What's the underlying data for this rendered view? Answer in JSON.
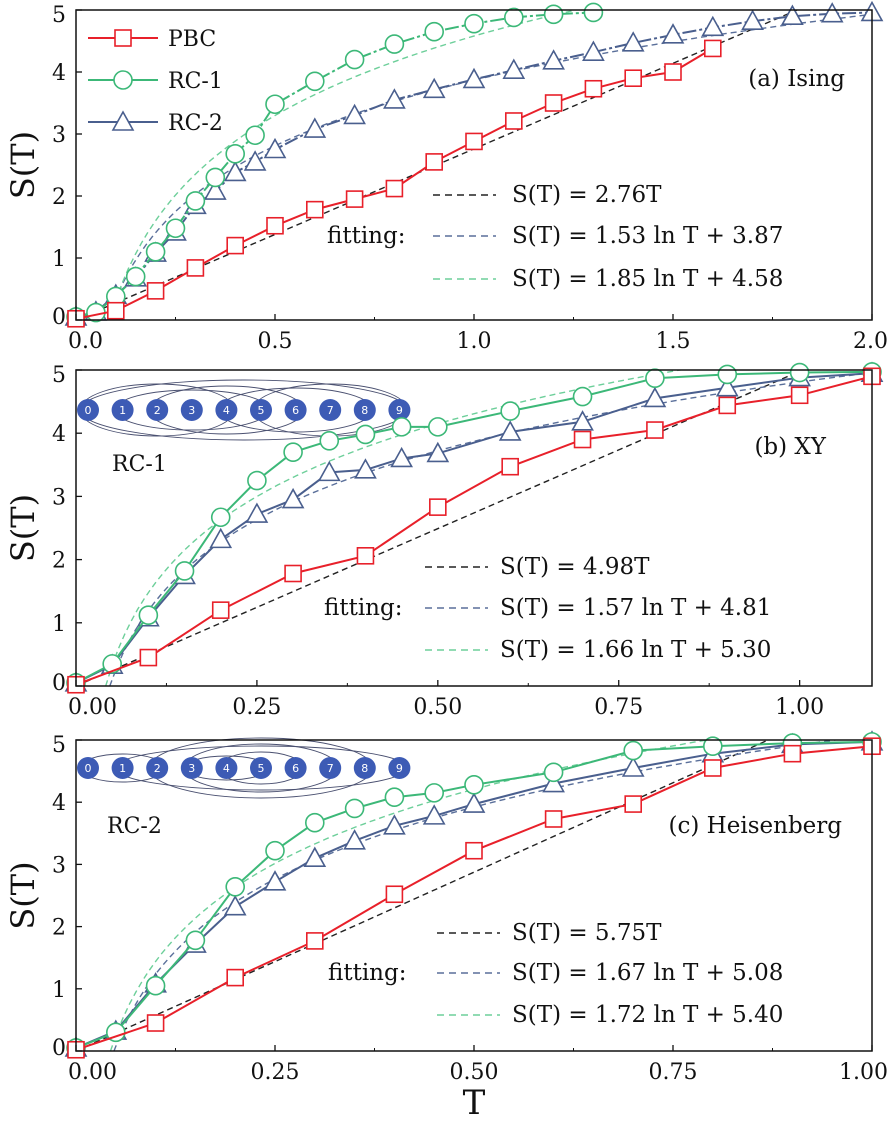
{
  "colors": {
    "pbc": "#e8202a",
    "rc1": "#3cb878",
    "rc2": "#4a5f8e",
    "rc2_fill": "#ffffff",
    "fit_linear": "#222222",
    "fit_rc2": "#5a6f9a",
    "fit_rc1": "#6dcf9a",
    "node": "#3d5bb5",
    "axis": "#111111"
  },
  "legend": {
    "pbc": "PBC",
    "rc1": "RC-1",
    "rc2": "RC-2"
  },
  "fitting_label": "fitting:",
  "x_axis_label": "T",
  "chain": {
    "nodes": [
      "0",
      "1",
      "2",
      "3",
      "4",
      "5",
      "6",
      "7",
      "8",
      "9"
    ],
    "rc1_label": "RC-1",
    "rc2_label": "RC-2"
  },
  "chart_data": [
    {
      "type": "line",
      "panel_label": "(a) Ising",
      "ylabel": "S(T)",
      "xlim": [
        0,
        2.0
      ],
      "ylim": [
        0,
        5
      ],
      "xticks": [
        "0.0",
        "0.5",
        "1.0",
        "1.5",
        "2.0"
      ],
      "yticks": [
        "0",
        "1",
        "2",
        "3",
        "4",
        "5"
      ],
      "series": [
        {
          "name": "PBC",
          "x": [
            0,
            0.1,
            0.2,
            0.3,
            0.4,
            0.5,
            0.6,
            0.7,
            0.8,
            0.9,
            1.0,
            1.1,
            1.2,
            1.3,
            1.4,
            1.5,
            1.6
          ],
          "y": [
            0.02,
            0.15,
            0.47,
            0.84,
            1.2,
            1.52,
            1.78,
            1.95,
            2.12,
            2.55,
            2.88,
            3.21,
            3.5,
            3.73,
            3.9,
            4.0,
            4.38
          ]
        },
        {
          "name": "RC-1",
          "x": [
            0,
            0.05,
            0.1,
            0.15,
            0.2,
            0.25,
            0.3,
            0.35,
            0.4,
            0.45,
            0.5,
            0.6,
            0.7,
            0.8,
            0.9,
            1.0,
            1.1,
            1.2,
            1.3
          ],
          "y": [
            0.05,
            0.12,
            0.38,
            0.7,
            1.1,
            1.48,
            1.92,
            2.3,
            2.68,
            2.98,
            3.48,
            3.85,
            4.2,
            4.45,
            4.65,
            4.78,
            4.88,
            4.93,
            4.96
          ]
        },
        {
          "name": "RC-2",
          "x": [
            0,
            0.05,
            0.1,
            0.15,
            0.2,
            0.25,
            0.3,
            0.35,
            0.4,
            0.45,
            0.5,
            0.6,
            0.7,
            0.8,
            0.9,
            1.0,
            1.1,
            1.2,
            1.3,
            1.4,
            1.5,
            1.6,
            1.7,
            1.8,
            1.9,
            2.0
          ],
          "y": [
            0.05,
            0.13,
            0.4,
            0.68,
            1.08,
            1.42,
            1.85,
            2.08,
            2.38,
            2.55,
            2.75,
            3.08,
            3.3,
            3.55,
            3.72,
            3.88,
            4.03,
            4.18,
            4.32,
            4.47,
            4.6,
            4.72,
            4.82,
            4.9,
            4.94,
            4.96
          ]
        }
      ],
      "fits": [
        {
          "label": "S(T) = 2.76T",
          "kind": "linear",
          "a": 2.76
        },
        {
          "label": "S(T) = 1.53 ln T + 3.87",
          "kind": "log",
          "a": 1.53,
          "b": 3.87
        },
        {
          "label": "S(T) = 1.85 ln T + 4.58",
          "kind": "log",
          "a": 1.85,
          "b": 4.58
        }
      ]
    },
    {
      "type": "line",
      "panel_label": "(b) XY",
      "ylabel": "S(T)",
      "xlim": [
        0,
        1.1
      ],
      "ylim": [
        0,
        5
      ],
      "xticks": [
        "0.00",
        "0.25",
        "0.50",
        "0.75",
        "1.00"
      ],
      "yticks": [
        "0",
        "1",
        "2",
        "3",
        "4",
        "5"
      ],
      "series": [
        {
          "name": "PBC",
          "x": [
            0,
            0.1,
            0.2,
            0.3,
            0.4,
            0.5,
            0.6,
            0.7,
            0.8,
            0.9,
            1.0,
            1.1
          ],
          "y": [
            0.02,
            0.45,
            1.2,
            1.78,
            2.06,
            2.83,
            3.47,
            3.9,
            4.05,
            4.44,
            4.6,
            4.9
          ]
        },
        {
          "name": "RC-1",
          "x": [
            0,
            0.05,
            0.1,
            0.15,
            0.2,
            0.25,
            0.3,
            0.35,
            0.4,
            0.45,
            0.5,
            0.6,
            0.7,
            0.8,
            0.9,
            1.0,
            1.1
          ],
          "y": [
            0.05,
            0.35,
            1.12,
            1.82,
            2.67,
            3.25,
            3.7,
            3.88,
            3.98,
            4.1,
            4.1,
            4.35,
            4.58,
            4.87,
            4.93,
            4.96,
            4.97
          ]
        },
        {
          "name": "RC-2",
          "x": [
            0,
            0.05,
            0.1,
            0.15,
            0.2,
            0.25,
            0.3,
            0.35,
            0.4,
            0.45,
            0.5,
            0.6,
            0.7,
            0.8,
            0.9,
            1.0,
            1.1
          ],
          "y": [
            0.05,
            0.33,
            1.08,
            1.75,
            2.32,
            2.72,
            2.95,
            3.38,
            3.42,
            3.6,
            3.68,
            4.02,
            4.18,
            4.55,
            4.72,
            4.88,
            4.95
          ]
        }
      ],
      "fits": [
        {
          "label": "S(T) = 4.98T",
          "kind": "linear",
          "a": 4.98
        },
        {
          "label": "S(T) = 1.57 ln T + 4.81",
          "kind": "log",
          "a": 1.57,
          "b": 4.81
        },
        {
          "label": "S(T) = 1.66 ln T + 5.30",
          "kind": "log",
          "a": 1.66,
          "b": 5.3
        }
      ]
    },
    {
      "type": "line",
      "panel_label": "(c) Heisenberg",
      "ylabel": "S(T)",
      "xlim": [
        0,
        1.0
      ],
      "ylim": [
        0,
        5
      ],
      "xlabel": "T",
      "xticks": [
        "0.00",
        "0.25",
        "0.50",
        "0.75",
        "1.00"
      ],
      "yticks": [
        "0",
        "1",
        "2",
        "3",
        "4",
        "5"
      ],
      "series": [
        {
          "name": "PBC",
          "x": [
            0,
            0.1,
            0.2,
            0.3,
            0.4,
            0.5,
            0.6,
            0.7,
            0.8,
            0.9,
            1.0
          ],
          "y": [
            0.02,
            0.45,
            1.18,
            1.77,
            2.52,
            3.22,
            3.73,
            3.97,
            4.55,
            4.78,
            4.9
          ]
        },
        {
          "name": "RC-1",
          "x": [
            0,
            0.05,
            0.1,
            0.15,
            0.2,
            0.25,
            0.3,
            0.35,
            0.4,
            0.45,
            0.5,
            0.6,
            0.7,
            0.8,
            0.9,
            1.0
          ],
          "y": [
            0.05,
            0.3,
            1.05,
            1.78,
            2.64,
            3.22,
            3.67,
            3.9,
            4.08,
            4.15,
            4.28,
            4.48,
            4.83,
            4.9,
            4.95,
            4.97
          ]
        },
        {
          "name": "RC-2",
          "x": [
            0,
            0.05,
            0.1,
            0.15,
            0.2,
            0.25,
            0.3,
            0.35,
            0.4,
            0.45,
            0.5,
            0.6,
            0.7,
            0.8,
            0.9,
            1.0
          ],
          "y": [
            0.05,
            0.32,
            1.08,
            1.72,
            2.32,
            2.72,
            3.1,
            3.38,
            3.62,
            3.78,
            3.97,
            4.3,
            4.55,
            4.78,
            4.93,
            4.97
          ]
        }
      ],
      "fits": [
        {
          "label": "S(T) = 5.75T",
          "kind": "linear",
          "a": 5.75
        },
        {
          "label": "S(T) = 1.67 ln T + 5.08",
          "kind": "log",
          "a": 1.67,
          "b": 5.08
        },
        {
          "label": "S(T) = 1.72 ln T + 5.40",
          "kind": "log",
          "a": 1.72,
          "b": 5.4
        }
      ]
    }
  ]
}
